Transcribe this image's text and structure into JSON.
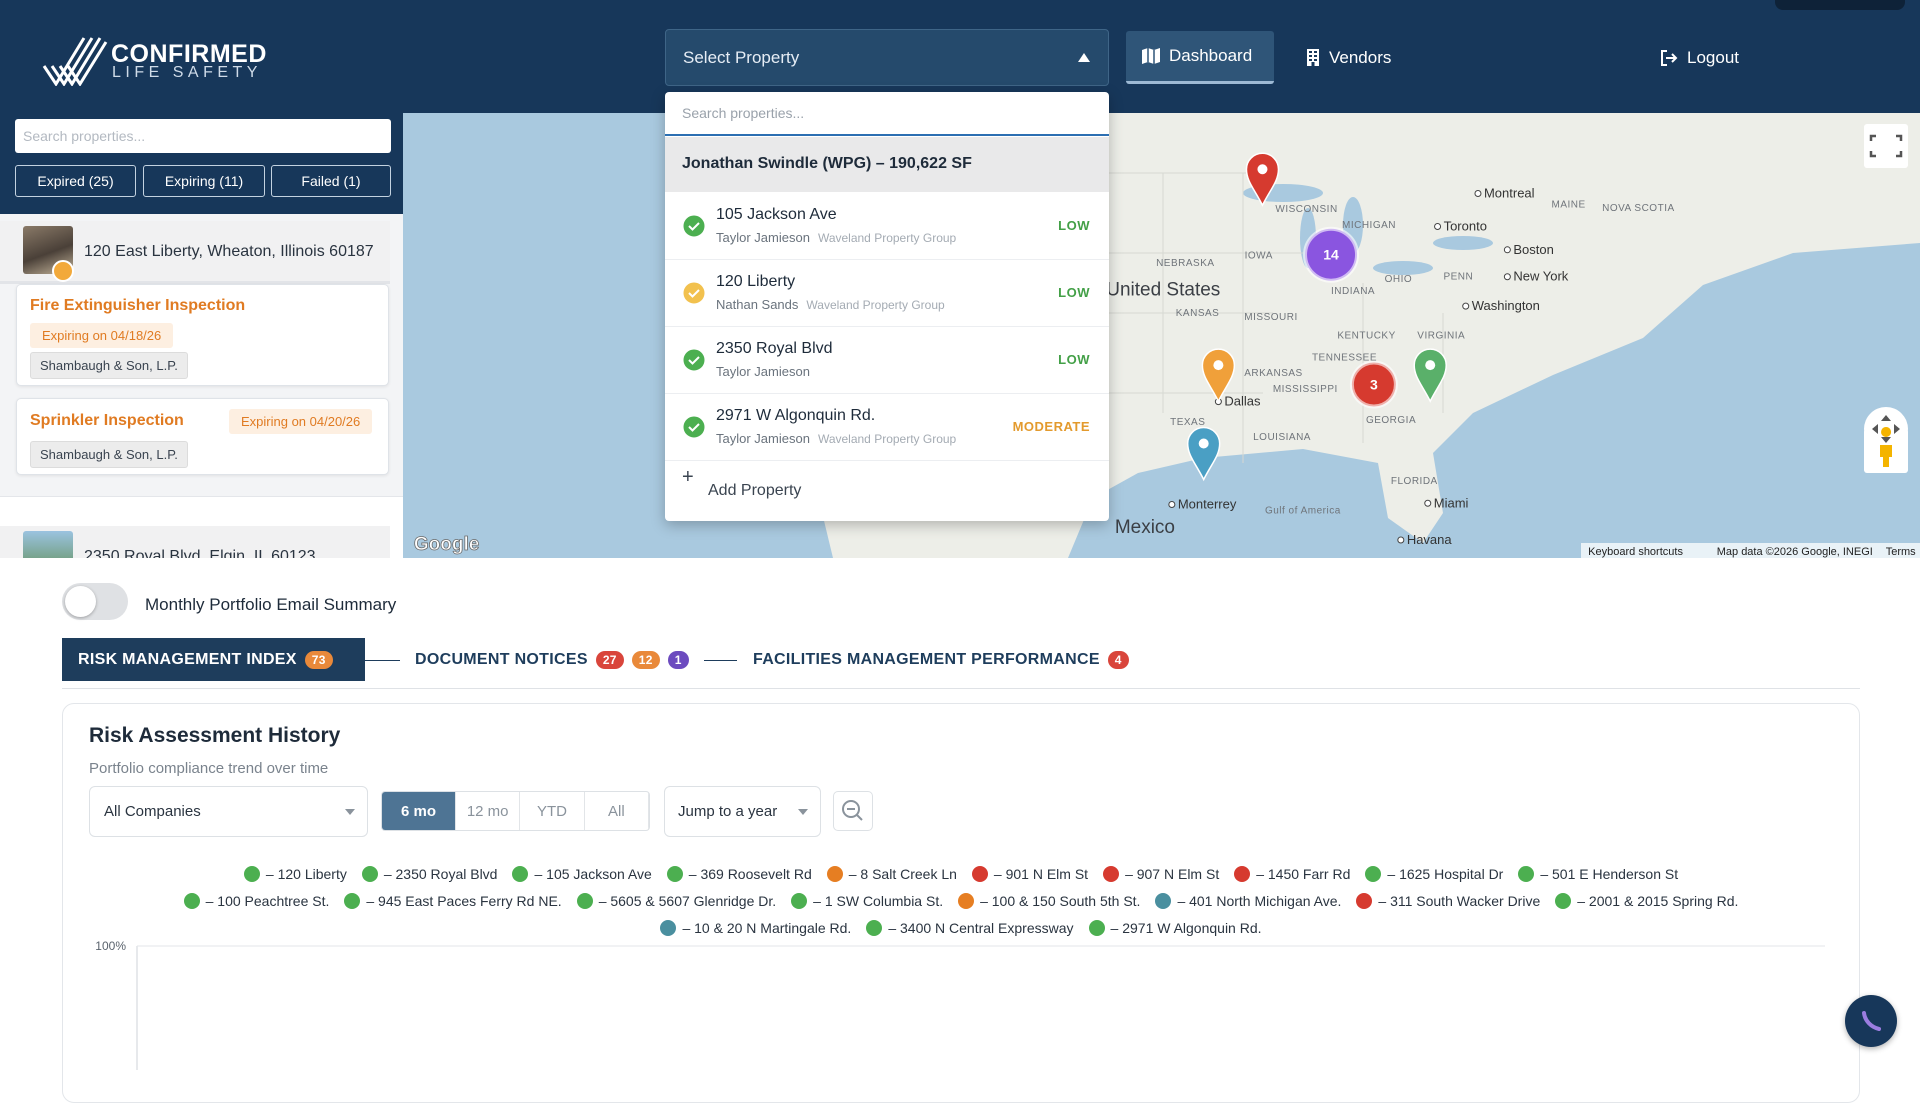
{
  "header": {
    "brand_line1": "CONFIRMED",
    "brand_line2": "LIFE SAFETY",
    "select_placeholder": "Select Property",
    "nav": [
      "Dashboard",
      "Vendors"
    ],
    "logout": "Logout"
  },
  "sidebar": {
    "search_placeholder": "Search properties...",
    "filters": [
      "Expired (25)",
      "Expiring (11)",
      "Failed (1)"
    ],
    "properties": [
      {
        "address": "120 East Liberty, Wheaton, Illinois 60187",
        "inspections": [
          {
            "title": "Fire Extinguisher Inspection",
            "status": "Expiring on 04/18/26",
            "vendor": "Shambaugh & Son, L.P."
          },
          {
            "title": "Sprinkler Inspection",
            "status": "Expiring on 04/20/26",
            "vendor": "Shambaugh & Son, L.P."
          }
        ]
      },
      {
        "address": "2350 Royal Blvd, Elgin, IL 60123"
      }
    ]
  },
  "dropdown": {
    "search_placeholder": "Search properties...",
    "group": "Jonathan Swindle (WPG) – 190,622 SF",
    "items": [
      {
        "name": "105 Jackson Ave",
        "contact": "Taylor Jamieson",
        "company": "Waveland Property Group",
        "risk": "LOW",
        "icon_color": "#4caf50",
        "risk_color": "#43a047"
      },
      {
        "name": "120 Liberty",
        "contact": "Nathan Sands",
        "company": "Waveland Property Group",
        "risk": "LOW",
        "icon_color": "#f2c14e",
        "risk_color": "#43a047"
      },
      {
        "name": "2350 Royal Blvd",
        "contact": "Taylor Jamieson",
        "risk": "LOW",
        "icon_color": "#4caf50",
        "risk_color": "#43a047"
      },
      {
        "name": "2971 W Algonquin Rd.",
        "contact": "Taylor Jamieson",
        "company": "Waveland Property Group",
        "risk": "MODERATE",
        "icon_color": "#4caf50",
        "risk_color": "#e39a2d"
      }
    ],
    "add": "Add Property"
  },
  "map": {
    "labels": [
      "United States",
      "Mexico",
      "NEBRASKA",
      "KANSAS",
      "IOWA",
      "MISSOURI",
      "WISCONSIN",
      "MICHIGAN",
      "INDIANA",
      "OHIO",
      "KENTUCKY",
      "TENNESSEE",
      "ARKANSAS",
      "MISSISSIPPI",
      "GEORGIA",
      "LOUISIANA",
      "TEXAS",
      "FLORIDA",
      "PENN",
      "VIRGINIA",
      "MAINE",
      "NOVA SCOTIA",
      "Gulf of America"
    ],
    "cities": [
      "Montreal",
      "Toronto",
      "Boston",
      "New York",
      "Washington",
      "Dallas",
      "Monterrey",
      "Miami",
      "Havana"
    ],
    "clusters": [
      14,
      3
    ],
    "logo": "Google",
    "attribution": [
      "Keyboard shortcuts",
      "Map data ©2026 Google, INEGI",
      "Terms"
    ]
  },
  "email_toggle": "Monthly Portfolio Email Summary",
  "tabs": [
    {
      "label": "RISK MANAGEMENT INDEX",
      "badges": [
        73
      ],
      "badge_colors": [
        "#e9893a"
      ]
    },
    {
      "label": "DOCUMENT NOTICES",
      "badges": [
        27,
        12,
        1
      ],
      "badge_colors": [
        "#d9453b",
        "#e9893a",
        "#6c4bbf"
      ]
    },
    {
      "label": "FACILITIES MANAGEMENT PERFORMANCE",
      "badges": [
        4
      ],
      "badge_colors": [
        "#d9453b"
      ]
    }
  ],
  "chart_controls": {
    "company": "All Companies",
    "ranges": [
      "6 mo",
      "12 mo",
      "YTD",
      "All"
    ],
    "active_range": "6 mo",
    "jump": "Jump to a year"
  },
  "chart_data": {
    "type": "line",
    "title": "Risk Assessment History",
    "subtitle": "Portfolio compliance trend over time",
    "series": [
      {
        "name": "– 120 Liberty",
        "color": "#4caf50"
      },
      {
        "name": "– 2350 Royal Blvd",
        "color": "#4caf50"
      },
      {
        "name": "– 105 Jackson Ave",
        "color": "#4caf50"
      },
      {
        "name": "– 369 Roosevelt Rd",
        "color": "#4caf50"
      },
      {
        "name": "– 8 Salt Creek Ln",
        "color": "#e67e22"
      },
      {
        "name": "– 901 N Elm St",
        "color": "#d63a2f"
      },
      {
        "name": "– 907 N Elm St",
        "color": "#d63a2f"
      },
      {
        "name": "– 1450 Farr Rd",
        "color": "#d63a2f"
      },
      {
        "name": "– 1625 Hospital Dr",
        "color": "#4caf50"
      },
      {
        "name": "– 501 E Henderson St",
        "color": "#4caf50"
      },
      {
        "name": "– 100 Peachtree St.",
        "color": "#4caf50"
      },
      {
        "name": "– 945 East Paces Ferry Rd NE.",
        "color": "#4caf50"
      },
      {
        "name": "– 5605 & 5607 Glenridge Dr.",
        "color": "#4caf50"
      },
      {
        "name": "– 1 SW Columbia St.",
        "color": "#4caf50"
      },
      {
        "name": "– 100 & 150 South 5th St.",
        "color": "#e67e22"
      },
      {
        "name": "– 401 North Michigan Ave.",
        "color": "#4a8f9f"
      },
      {
        "name": "– 311 South Wacker Drive",
        "color": "#d63a2f"
      },
      {
        "name": "– 2001 & 2015 Spring Rd.",
        "color": "#4caf50"
      },
      {
        "name": "– 10 & 20 N Martingale Rd.",
        "color": "#4a8f9f"
      },
      {
        "name": "– 3400 N Central Expressway",
        "color": "#4caf50"
      },
      {
        "name": "– 2971 W Algonquin Rd.",
        "color": "#4caf50"
      }
    ],
    "ylim": [
      0,
      100
    ],
    "yticks": [
      {
        "value": 100,
        "label": "100%"
      }
    ],
    "grid": true
  }
}
